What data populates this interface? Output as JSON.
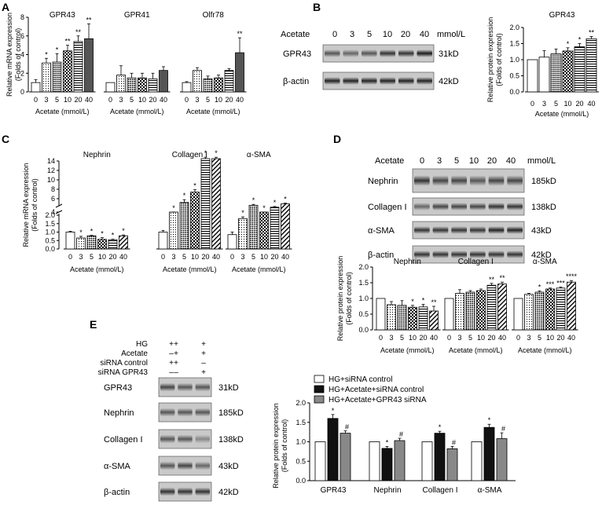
{
  "chart_data": [
    {
      "panel": "A",
      "type": "bar",
      "sub": "mrna",
      "ylabel": [
        "Relative mRNA expression",
        "(Folds of control)"
      ],
      "ylim": [
        0,
        8
      ],
      "yticks": [
        0,
        2,
        4,
        6,
        8
      ],
      "groups": [
        {
          "title": "GPR43",
          "xlabel": "Acetate (mmol/L)",
          "categories": [
            "0",
            "3",
            "5",
            "10",
            "20",
            "40"
          ],
          "values": [
            1.0,
            3.1,
            3.2,
            4.4,
            5.4,
            5.7
          ],
          "errors": [
            0.3,
            0.5,
            0.9,
            0.6,
            0.6,
            1.6
          ],
          "sig": [
            "",
            "*",
            "*",
            "**",
            "**",
            "**"
          ]
        },
        {
          "title": "GPR41",
          "xlabel": "Acetate (mmol/L)",
          "categories": [
            "0",
            "3",
            "5",
            "10",
            "20",
            "40"
          ],
          "values": [
            1.0,
            1.8,
            1.5,
            1.5,
            1.4,
            2.3
          ],
          "errors": [
            0.0,
            1.0,
            0.5,
            0.5,
            0.6,
            0.4
          ],
          "sig": [
            "",
            "",
            "",
            "",
            "",
            ""
          ]
        },
        {
          "title": "Olfr78",
          "xlabel": "Acetate (mmol/L)",
          "categories": [
            "0",
            "3",
            "5",
            "10",
            "20",
            "40"
          ],
          "values": [
            1.0,
            2.3,
            1.4,
            1.5,
            2.3,
            4.2
          ],
          "errors": [
            0.1,
            0.3,
            0.3,
            0.3,
            0.2,
            1.6
          ],
          "sig": [
            "",
            "",
            "",
            "",
            "",
            "**"
          ]
        }
      ]
    },
    {
      "panel": "B",
      "type": "bar",
      "sub": "protein",
      "ylabel": [
        "Relative protein expression",
        "(Folds of control)"
      ],
      "ylim": [
        0,
        2.0
      ],
      "yticks": [
        "0.0",
        "0.5",
        "1.0",
        "1.5",
        "2.0"
      ],
      "groups": [
        {
          "title": "GPR43",
          "xlabel": "Acetate (mmol/L)",
          "categories": [
            "0",
            "3",
            "5",
            "10",
            "20",
            "40"
          ],
          "values": [
            1.0,
            1.08,
            1.18,
            1.27,
            1.4,
            1.65
          ],
          "errors": [
            0.0,
            0.2,
            0.15,
            0.1,
            0.1,
            0.07
          ],
          "sig": [
            "",
            "",
            "",
            "*",
            "*",
            "**"
          ]
        }
      ]
    },
    {
      "panel": "C",
      "type": "bar",
      "sub": "mrna-broken-axis",
      "ylabel": [
        "Relative mRNA expression",
        "(Folds of control)"
      ],
      "yticks_lower": [
        "0.0",
        "0.5",
        "1.0",
        "1.5",
        "2.0"
      ],
      "yticks_upper": [
        "4",
        "6",
        "8",
        "10",
        "12",
        "14"
      ],
      "groups": [
        {
          "title": "Nephrin",
          "xlabel": "Acetate (mmol/L)",
          "categories": [
            "0",
            "3",
            "5",
            "10",
            "20",
            "40"
          ],
          "values": [
            1.0,
            0.65,
            0.78,
            0.57,
            0.55,
            0.78
          ],
          "errors": [
            0.05,
            0.1,
            0.03,
            0.1,
            0.03,
            0.05
          ],
          "sig": [
            "",
            "*",
            "*",
            "*",
            "*",
            "*"
          ]
        },
        {
          "title": "Collagen I",
          "xlabel": "Acetate (mmol/L)",
          "categories": [
            "0",
            "3",
            "5",
            "10",
            "20",
            "40"
          ],
          "values": [
            1.0,
            3.3,
            5.2,
            7.4,
            14.5,
            14.5
          ],
          "errors": [
            0.1,
            0.3,
            0.6,
            0.5,
            0.3,
            0.3
          ],
          "sig": [
            "",
            "*",
            "*",
            "*",
            "*",
            "*"
          ]
        },
        {
          "title": "α-SMA",
          "xlabel": "Acetate (mmol/L)",
          "categories": [
            "0",
            "3",
            "5",
            "10",
            "20",
            "40"
          ],
          "values": [
            0.85,
            1.8,
            4.6,
            2.95,
            4.2,
            4.9
          ],
          "errors": [
            0.15,
            0.1,
            0.2,
            0.15,
            0.15,
            0.15
          ],
          "sig": [
            "",
            "*",
            "*",
            "*",
            "*",
            "*"
          ]
        }
      ]
    },
    {
      "panel": "D",
      "type": "bar",
      "sub": "protein",
      "ylabel": [
        "Relative protein expression",
        "(Folds of control)"
      ],
      "ylim": [
        0,
        2.0
      ],
      "yticks": [
        "0.0",
        "0.5",
        "1.0",
        "1.5",
        "2.0"
      ],
      "groups": [
        {
          "title": "Nephrin",
          "xlabel": "Acetate (mmol/L)",
          "categories": [
            "0",
            "3",
            "5",
            "10",
            "20",
            "40"
          ],
          "values": [
            1.0,
            0.8,
            0.78,
            0.72,
            0.73,
            0.6
          ],
          "errors": [
            0.0,
            0.1,
            0.15,
            0.06,
            0.08,
            0.15
          ],
          "sig": [
            "",
            "",
            "",
            "*",
            "*",
            "**"
          ]
        },
        {
          "title": "Collagen I",
          "xlabel": "Acetate (mmol/L)",
          "categories": [
            "0",
            "3",
            "5",
            "10",
            "20",
            "40"
          ],
          "values": [
            1.0,
            1.16,
            1.2,
            1.25,
            1.42,
            1.46
          ],
          "errors": [
            0.0,
            0.12,
            0.05,
            0.05,
            0.06,
            0.06
          ],
          "sig": [
            "",
            "",
            "",
            "",
            "**",
            "**"
          ]
        },
        {
          "title": "α-SMA",
          "xlabel": "Acetate (mmol/L)",
          "categories": [
            "0",
            "3",
            "5",
            "10",
            "20",
            "40"
          ],
          "values": [
            1.0,
            1.13,
            1.2,
            1.3,
            1.33,
            1.52
          ],
          "errors": [
            0.0,
            0.03,
            0.04,
            0.03,
            0.03,
            0.05
          ],
          "sig": [
            "",
            "",
            "*",
            "***",
            "***",
            "****"
          ]
        }
      ]
    },
    {
      "panel": "E",
      "type": "bar",
      "sub": "grouped",
      "ylabel": [
        "Relative protein expression",
        "(Folds of control)"
      ],
      "ylim": [
        0,
        2.0
      ],
      "yticks": [
        "0.0",
        "0.5",
        "1.0",
        "1.5",
        "2.0"
      ],
      "categories": [
        "GPR43",
        "Nephrin",
        "Collagen I",
        "α-SMA"
      ],
      "series": [
        {
          "name": "HG+siRNA control",
          "values": [
            1.0,
            1.0,
            1.0,
            1.0
          ],
          "errors": [
            0,
            0,
            0,
            0
          ],
          "sig": [
            "",
            "",
            "",
            ""
          ],
          "color": "#ffffff"
        },
        {
          "name": "HG+Acetate+siRNA  control",
          "values": [
            1.6,
            0.83,
            1.22,
            1.37
          ],
          "errors": [
            0.1,
            0.05,
            0.05,
            0.08
          ],
          "sig": [
            "*",
            "*",
            "*",
            "*"
          ],
          "color": "#111111"
        },
        {
          "name": "HG+Acetate+GPR43 siRNA",
          "values": [
            1.22,
            1.03,
            0.82,
            1.08
          ],
          "errors": [
            0.06,
            0.06,
            0.06,
            0.15
          ],
          "sig": [
            "#",
            "#",
            "#",
            "#"
          ],
          "color": "#888888"
        }
      ],
      "legend": "top"
    }
  ],
  "panel_letters": [
    "A",
    "B",
    "C",
    "D",
    "E"
  ],
  "blots": {
    "B": {
      "header": "Acetate",
      "doses": [
        "0",
        "3",
        "5",
        "10",
        "20",
        "40"
      ],
      "unit": "mmol/L",
      "rows": [
        {
          "name": "GPR43",
          "kd": "31kD"
        },
        {
          "name": "β-actin",
          "kd": "42kD"
        }
      ]
    },
    "D": {
      "header": "Acetate",
      "doses": [
        "0",
        "3",
        "5",
        "10",
        "20",
        "40"
      ],
      "unit": "mmol/L",
      "rows": [
        {
          "name": "Nephrin",
          "kd": "185kD"
        },
        {
          "name": "Collagen I",
          "kd": "138kD"
        },
        {
          "name": "α-SMA",
          "kd": "43kD"
        },
        {
          "name": "β-actin",
          "kd": "42kD"
        }
      ]
    },
    "E": {
      "conditions": [
        {
          "label": "HG",
          "marks": [
            "+",
            "+",
            "+"
          ]
        },
        {
          "label": "Acetate",
          "marks": [
            "–",
            "+",
            "+"
          ]
        },
        {
          "label": "siRNA control",
          "marks": [
            "+",
            "+",
            "–"
          ]
        },
        {
          "label": "siRNA GPR43",
          "marks": [
            "–",
            "–",
            "+"
          ]
        }
      ],
      "rows": [
        {
          "name": "GPR43",
          "kd": "31kD"
        },
        {
          "name": "Nephrin",
          "kd": "185kD"
        },
        {
          "name": "Collagen I",
          "kd": "138kD"
        },
        {
          "name": "α-SMA",
          "kd": "43kD"
        },
        {
          "name": "β-actin",
          "kd": "42kD"
        }
      ]
    }
  }
}
